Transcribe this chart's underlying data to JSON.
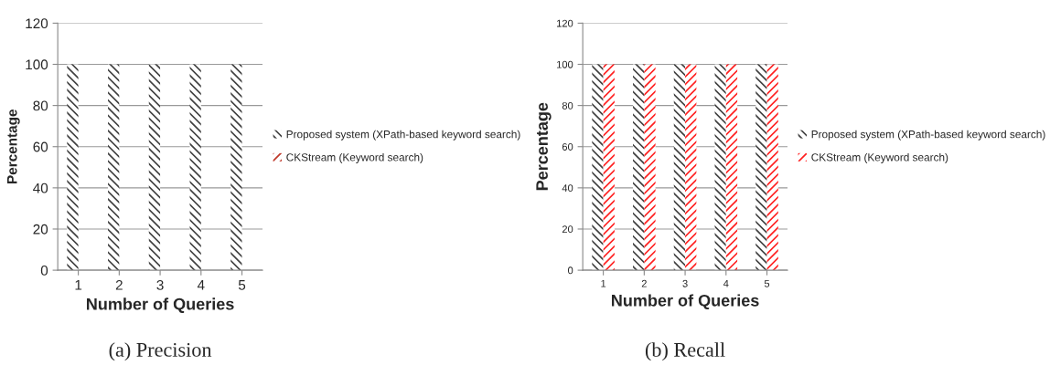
{
  "chart_data": [
    {
      "type": "bar",
      "title": "(a) Precision",
      "xlabel": "Number of Queries",
      "ylabel": "Percentage",
      "categories": [
        "1",
        "2",
        "3",
        "4",
        "5"
      ],
      "series": [
        {
          "name": "Proposed system (XPath-based keyword search)",
          "color": "#404040",
          "values": [
            100,
            100,
            100,
            100,
            100
          ]
        },
        {
          "name": "CKStream (Keyword search)",
          "color": "#c0392b",
          "values": [
            0,
            0,
            0,
            0,
            0
          ]
        }
      ],
      "ylim": [
        0,
        120
      ],
      "yticks": [
        0,
        20,
        40,
        60,
        80,
        100,
        120
      ],
      "grid": "y",
      "legend": "right"
    },
    {
      "type": "bar",
      "title": "(b) Recall",
      "xlabel": "Number of Queries",
      "ylabel": "Percentage",
      "categories": [
        "1",
        "2",
        "3",
        "4",
        "5"
      ],
      "series": [
        {
          "name": "Proposed system (XPath-based keyword search)",
          "color": "#404040",
          "values": [
            100,
            100,
            100,
            100,
            100
          ]
        },
        {
          "name": "CKStream (Keyword search)",
          "color": "#ff2020",
          "values": [
            100,
            100,
            100,
            100,
            100
          ]
        }
      ],
      "ylim": [
        0,
        120
      ],
      "yticks": [
        0,
        20,
        40,
        60,
        80,
        100,
        120
      ],
      "grid": "y",
      "legend": "right"
    }
  ]
}
